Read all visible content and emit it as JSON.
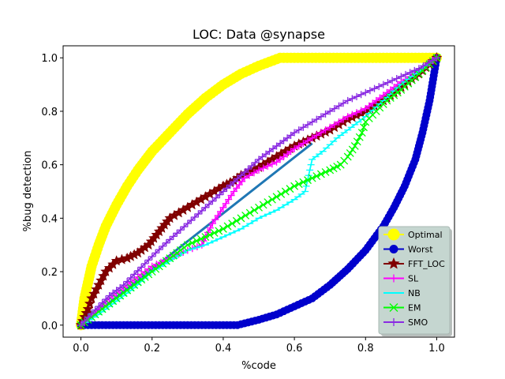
{
  "chart_data": {
    "type": "line",
    "title": "LOC: Data @synapse",
    "xlabel": "%code",
    "ylabel": "%bug detection",
    "xlim": [
      -0.05,
      1.05
    ],
    "ylim": [
      -0.045,
      1.045
    ],
    "x_ticks": [
      "0.0",
      "0.2",
      "0.4",
      "0.6",
      "0.8",
      "1.0"
    ],
    "y_ticks": [
      "0.0",
      "0.2",
      "0.4",
      "0.6",
      "0.8",
      "1.0"
    ],
    "grid": false,
    "legend_position": "lower-right",
    "series": [
      {
        "name": "Optimal",
        "color": "#ffff00",
        "marker": "circle",
        "points": [
          [
            0,
            0
          ],
          [
            0.005,
            0.05
          ],
          [
            0.01,
            0.1
          ],
          [
            0.02,
            0.16
          ],
          [
            0.03,
            0.22
          ],
          [
            0.05,
            0.3
          ],
          [
            0.07,
            0.37
          ],
          [
            0.1,
            0.45
          ],
          [
            0.13,
            0.52
          ],
          [
            0.16,
            0.58
          ],
          [
            0.2,
            0.65
          ],
          [
            0.25,
            0.72
          ],
          [
            0.3,
            0.79
          ],
          [
            0.35,
            0.85
          ],
          [
            0.4,
            0.9
          ],
          [
            0.45,
            0.94
          ],
          [
            0.5,
            0.97
          ],
          [
            0.54,
            0.99
          ],
          [
            0.56,
            1.0
          ],
          [
            0.7,
            1.0
          ],
          [
            0.85,
            1.0
          ],
          [
            1.0,
            1.0
          ]
        ]
      },
      {
        "name": "Worst",
        "color": "#0000cc",
        "marker": "circle",
        "points": [
          [
            0,
            0
          ],
          [
            0.1,
            0
          ],
          [
            0.2,
            0
          ],
          [
            0.3,
            0
          ],
          [
            0.44,
            0
          ],
          [
            0.47,
            0.01
          ],
          [
            0.5,
            0.02
          ],
          [
            0.55,
            0.04
          ],
          [
            0.6,
            0.07
          ],
          [
            0.65,
            0.1
          ],
          [
            0.7,
            0.15
          ],
          [
            0.75,
            0.21
          ],
          [
            0.8,
            0.28
          ],
          [
            0.85,
            0.37
          ],
          [
            0.88,
            0.44
          ],
          [
            0.91,
            0.52
          ],
          [
            0.94,
            0.62
          ],
          [
            0.96,
            0.72
          ],
          [
            0.98,
            0.84
          ],
          [
            0.99,
            0.92
          ],
          [
            1.0,
            1.0
          ]
        ]
      },
      {
        "name": "FFT_LOC",
        "color": "#800000",
        "marker": "star",
        "points": [
          [
            0,
            0
          ],
          [
            0.01,
            0.03
          ],
          [
            0.02,
            0.06
          ],
          [
            0.03,
            0.1
          ],
          [
            0.05,
            0.15
          ],
          [
            0.07,
            0.2
          ],
          [
            0.1,
            0.24
          ],
          [
            0.13,
            0.25
          ],
          [
            0.16,
            0.27
          ],
          [
            0.19,
            0.3
          ],
          [
            0.22,
            0.35
          ],
          [
            0.25,
            0.4
          ],
          [
            0.3,
            0.44
          ],
          [
            0.35,
            0.48
          ],
          [
            0.4,
            0.52
          ],
          [
            0.43,
            0.54
          ],
          [
            0.45,
            0.56
          ],
          [
            0.5,
            0.59
          ],
          [
            0.55,
            0.63
          ],
          [
            0.6,
            0.67
          ],
          [
            0.65,
            0.7
          ],
          [
            0.7,
            0.73
          ],
          [
            0.75,
            0.77
          ],
          [
            0.8,
            0.8
          ],
          [
            0.85,
            0.84
          ],
          [
            0.9,
            0.89
          ],
          [
            0.95,
            0.94
          ],
          [
            1.0,
            1.0
          ]
        ]
      },
      {
        "name": "SL",
        "color": "#ff00ff",
        "marker": "plus",
        "points": [
          [
            0,
            0
          ],
          [
            0.02,
            0.02
          ],
          [
            0.05,
            0.06
          ],
          [
            0.08,
            0.1
          ],
          [
            0.12,
            0.14
          ],
          [
            0.16,
            0.18
          ],
          [
            0.2,
            0.22
          ],
          [
            0.25,
            0.25
          ],
          [
            0.3,
            0.28
          ],
          [
            0.34,
            0.3
          ],
          [
            0.35,
            0.33
          ],
          [
            0.37,
            0.38
          ],
          [
            0.4,
            0.44
          ],
          [
            0.43,
            0.5
          ],
          [
            0.46,
            0.55
          ],
          [
            0.5,
            0.58
          ],
          [
            0.55,
            0.61
          ],
          [
            0.6,
            0.66
          ],
          [
            0.65,
            0.7
          ],
          [
            0.7,
            0.74
          ],
          [
            0.75,
            0.78
          ],
          [
            0.8,
            0.81
          ],
          [
            0.85,
            0.86
          ],
          [
            0.9,
            0.91
          ],
          [
            0.95,
            0.95
          ],
          [
            1.0,
            1.0
          ]
        ]
      },
      {
        "name": "NB",
        "color": "#00ffff",
        "marker": "hline",
        "points": [
          [
            0,
            0
          ],
          [
            0.05,
            0.04
          ],
          [
            0.1,
            0.09
          ],
          [
            0.15,
            0.14
          ],
          [
            0.2,
            0.2
          ],
          [
            0.25,
            0.24
          ],
          [
            0.3,
            0.28
          ],
          [
            0.35,
            0.3
          ],
          [
            0.4,
            0.33
          ],
          [
            0.45,
            0.36
          ],
          [
            0.5,
            0.4
          ],
          [
            0.55,
            0.43
          ],
          [
            0.6,
            0.47
          ],
          [
            0.63,
            0.5
          ],
          [
            0.64,
            0.56
          ],
          [
            0.65,
            0.62
          ],
          [
            0.68,
            0.65
          ],
          [
            0.72,
            0.7
          ],
          [
            0.76,
            0.74
          ],
          [
            0.8,
            0.78
          ],
          [
            0.85,
            0.84
          ],
          [
            0.9,
            0.9
          ],
          [
            0.95,
            0.95
          ],
          [
            1.0,
            1.0
          ]
        ]
      },
      {
        "name": "EM",
        "color": "#00ff00",
        "marker": "x",
        "points": [
          [
            0,
            0
          ],
          [
            0.02,
            0.02
          ],
          [
            0.05,
            0.05
          ],
          [
            0.1,
            0.1
          ],
          [
            0.15,
            0.15
          ],
          [
            0.2,
            0.2
          ],
          [
            0.25,
            0.25
          ],
          [
            0.3,
            0.3
          ],
          [
            0.35,
            0.33
          ],
          [
            0.4,
            0.36
          ],
          [
            0.45,
            0.4
          ],
          [
            0.5,
            0.44
          ],
          [
            0.55,
            0.48
          ],
          [
            0.6,
            0.52
          ],
          [
            0.65,
            0.55
          ],
          [
            0.7,
            0.58
          ],
          [
            0.73,
            0.6
          ],
          [
            0.75,
            0.63
          ],
          [
            0.77,
            0.67
          ],
          [
            0.79,
            0.72
          ],
          [
            0.8,
            0.76
          ],
          [
            0.83,
            0.8
          ],
          [
            0.86,
            0.84
          ],
          [
            0.9,
            0.88
          ],
          [
            0.95,
            0.94
          ],
          [
            1.0,
            1.0
          ]
        ]
      },
      {
        "name": "SMO",
        "color": "#8a2be2",
        "marker": "plus",
        "points": [
          [
            0,
            0
          ],
          [
            0.02,
            0.03
          ],
          [
            0.05,
            0.07
          ],
          [
            0.08,
            0.11
          ],
          [
            0.12,
            0.15
          ],
          [
            0.15,
            0.19
          ],
          [
            0.18,
            0.23
          ],
          [
            0.21,
            0.27
          ],
          [
            0.25,
            0.32
          ],
          [
            0.3,
            0.38
          ],
          [
            0.35,
            0.44
          ],
          [
            0.4,
            0.5
          ],
          [
            0.45,
            0.56
          ],
          [
            0.5,
            0.62
          ],
          [
            0.55,
            0.67
          ],
          [
            0.6,
            0.72
          ],
          [
            0.65,
            0.76
          ],
          [
            0.7,
            0.8
          ],
          [
            0.75,
            0.84
          ],
          [
            0.8,
            0.87
          ],
          [
            0.85,
            0.9
          ],
          [
            0.9,
            0.93
          ],
          [
            0.95,
            0.96
          ],
          [
            1.0,
            1.0
          ]
        ]
      },
      {
        "name": "",
        "color": "#1f77b4",
        "marker": "none",
        "points": [
          [
            0,
            0
          ],
          [
            0.65,
            0.68
          ]
        ]
      }
    ]
  }
}
